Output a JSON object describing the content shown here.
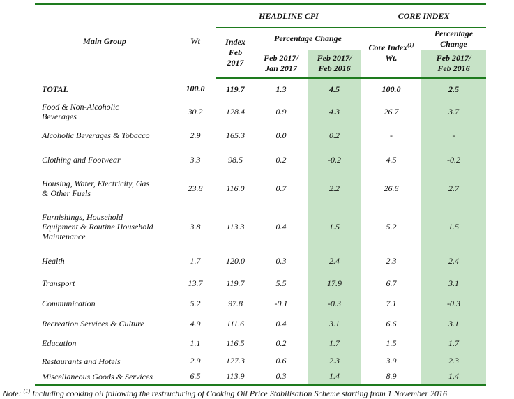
{
  "header": {
    "main_group": "Main Group",
    "wt": "Wt",
    "headline_cpi": "HEADLINE CPI",
    "core_index": "CORE INDEX",
    "index_feb": "Index Feb 2017",
    "percentage_change": "Percentage Change",
    "feb_jan": "Feb 2017/ Jan 2017",
    "feb_feb": "Feb 2017/ Feb 2016",
    "core_index_wt": "Core Index",
    "core_index_sup": "(1)",
    "core_wt": "Wt.",
    "core_pct": "Percentage Change",
    "core_feb_feb": "Feb 2017/ Feb 2016"
  },
  "rows": [
    {
      "group": "TOTAL",
      "wt": "100.0",
      "index": "119.7",
      "mom": "1.3",
      "yoy": "4.5",
      "core_wt": "100.0",
      "core_yoy": "2.5"
    },
    {
      "group": "Food & Non-Alcoholic Beverages",
      "wt": "30.2",
      "index": "128.4",
      "mom": "0.9",
      "yoy": "4.3",
      "core_wt": "26.7",
      "core_yoy": "3.7"
    },
    {
      "group": "Alcoholic Beverages & Tobacco",
      "wt": "2.9",
      "index": "165.3",
      "mom": "0.0",
      "yoy": "0.2",
      "core_wt": "-",
      "core_yoy": "-"
    },
    {
      "group": "Clothing and Footwear",
      "wt": "3.3",
      "index": "98.5",
      "mom": "0.2",
      "yoy": "-0.2",
      "core_wt": "4.5",
      "core_yoy": "-0.2"
    },
    {
      "group": "Housing, Water, Electricity, Gas & Other Fuels",
      "wt": "23.8",
      "index": "116.0",
      "mom": "0.7",
      "yoy": "2.2",
      "core_wt": "26.6",
      "core_yoy": "2.7"
    },
    {
      "group": "Furnishings, Household Equipment & Routine Household Maintenance",
      "wt": "3.8",
      "index": "113.3",
      "mom": "0.4",
      "yoy": "1.5",
      "core_wt": "5.2",
      "core_yoy": "1.5"
    },
    {
      "group": "Health",
      "wt": "1.7",
      "index": "120.0",
      "mom": "0.3",
      "yoy": "2.4",
      "core_wt": "2.3",
      "core_yoy": "2.4"
    },
    {
      "group": "Transport",
      "wt": "13.7",
      "index": "119.7",
      "mom": "5.5",
      "yoy": "17.9",
      "core_wt": "6.7",
      "core_yoy": "3.1"
    },
    {
      "group": "Communication",
      "wt": "5.2",
      "index": "97.8",
      "mom": "-0.1",
      "yoy": "-0.3",
      "core_wt": "7.1",
      "core_yoy": "-0.3"
    },
    {
      "group": "Recreation Services & Culture",
      "wt": "4.9",
      "index": "111.6",
      "mom": "0.4",
      "yoy": "3.1",
      "core_wt": "6.6",
      "core_yoy": "3.1"
    },
    {
      "group": "Education",
      "wt": "1.1",
      "index": "116.5",
      "mom": "0.2",
      "yoy": "1.7",
      "core_wt": "1.5",
      "core_yoy": "1.7"
    },
    {
      "group": "Restaurants and Hotels",
      "wt": "2.9",
      "index": "127.3",
      "mom": "0.6",
      "yoy": "2.3",
      "core_wt": "3.9",
      "core_yoy": "2.3"
    },
    {
      "group": "Miscellaneous Goods & Services",
      "wt": "6.5",
      "index": "113.9",
      "mom": "0.3",
      "yoy": "1.4",
      "core_wt": "8.9",
      "core_yoy": "1.4"
    }
  ],
  "note": {
    "prefix": "Note:",
    "sup": "(1)",
    "text": " Including cooking oil following the restructuring of Cooking Oil Price Stabilisation Scheme starting from 1 November 2016"
  }
}
